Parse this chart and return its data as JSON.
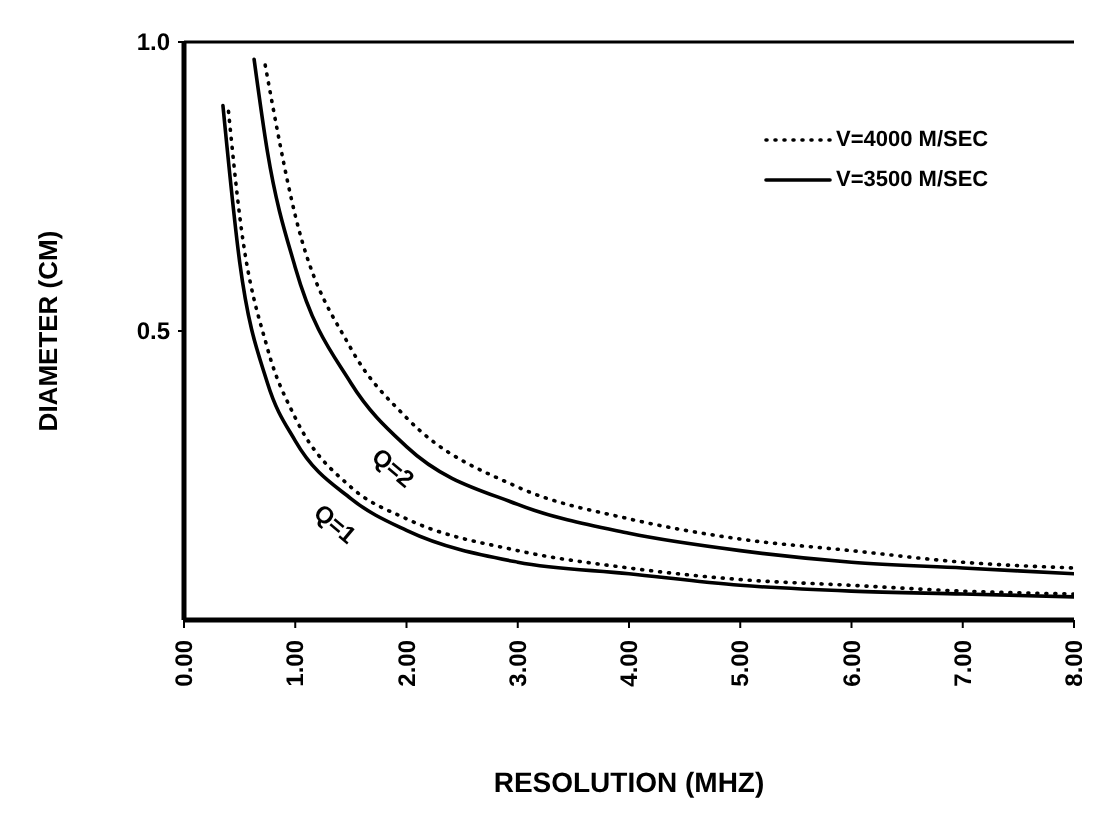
{
  "chart_data": {
    "type": "line",
    "xlabel": "RESOLUTION  (MHZ)",
    "ylabel": "DIAMETER  (CM)",
    "xlim": [
      0,
      8
    ],
    "xticks": [
      {
        "value": 0,
        "label": "0.00"
      },
      {
        "value": 1,
        "label": "1.00"
      },
      {
        "value": 2,
        "label": "2.00"
      },
      {
        "value": 3,
        "label": "3.00"
      },
      {
        "value": 4,
        "label": "4.00"
      },
      {
        "value": 5,
        "label": "5.00"
      },
      {
        "value": 6,
        "label": "6.00"
      },
      {
        "value": 7,
        "label": "7.00"
      },
      {
        "value": 8,
        "label": "8.00"
      }
    ],
    "ylim": [
      0,
      1
    ],
    "yticks": [
      0.5,
      {
        "value": 1,
        "label": "1.0"
      }
    ],
    "legend": "top right",
    "marker": "none",
    "series": [
      {
        "name": "V=4000 M/SEC",
        "color": "#000000",
        "line_style": "dotted",
        "x": [
          0.4,
          0.5,
          0.75,
          1,
          1.5,
          2,
          3,
          4,
          5,
          6,
          7,
          8
        ],
        "values": [
          0.88,
          0.7,
          0.47,
          0.35,
          0.23,
          0.175,
          0.12,
          0.09,
          0.07,
          0.06,
          0.05,
          0.045
        ]
      },
      {
        "name": "V=3500 M/SEC",
        "color": "#000000",
        "line_style": "solid",
        "x": [
          0.35,
          0.5,
          0.75,
          1,
          1.5,
          2,
          3,
          4,
          5,
          6,
          7,
          8
        ],
        "values": [
          0.89,
          0.62,
          0.41,
          0.31,
          0.21,
          0.155,
          0.1,
          0.08,
          0.06,
          0.05,
          0.045,
          0.04
        ]
      },
      {
        "color": "#000000",
        "line_style": "dotted",
        "x": [
          0.73,
          1,
          1.5,
          2,
          3,
          4,
          5,
          6,
          7,
          8
        ],
        "values": [
          0.96,
          0.7,
          0.47,
          0.35,
          0.23,
          0.175,
          0.14,
          0.12,
          0.1,
          0.09
        ]
      },
      {
        "color": "#000000",
        "line_style": "solid",
        "x": [
          0.63,
          0.75,
          1,
          1.5,
          2,
          3,
          4,
          5,
          6,
          7,
          8
        ],
        "values": [
          0.97,
          0.81,
          0.61,
          0.41,
          0.3,
          0.2,
          0.15,
          0.12,
          0.1,
          0.09,
          0.08
        ]
      }
    ],
    "annotations": [
      "Q=1",
      "Q=2"
    ]
  }
}
